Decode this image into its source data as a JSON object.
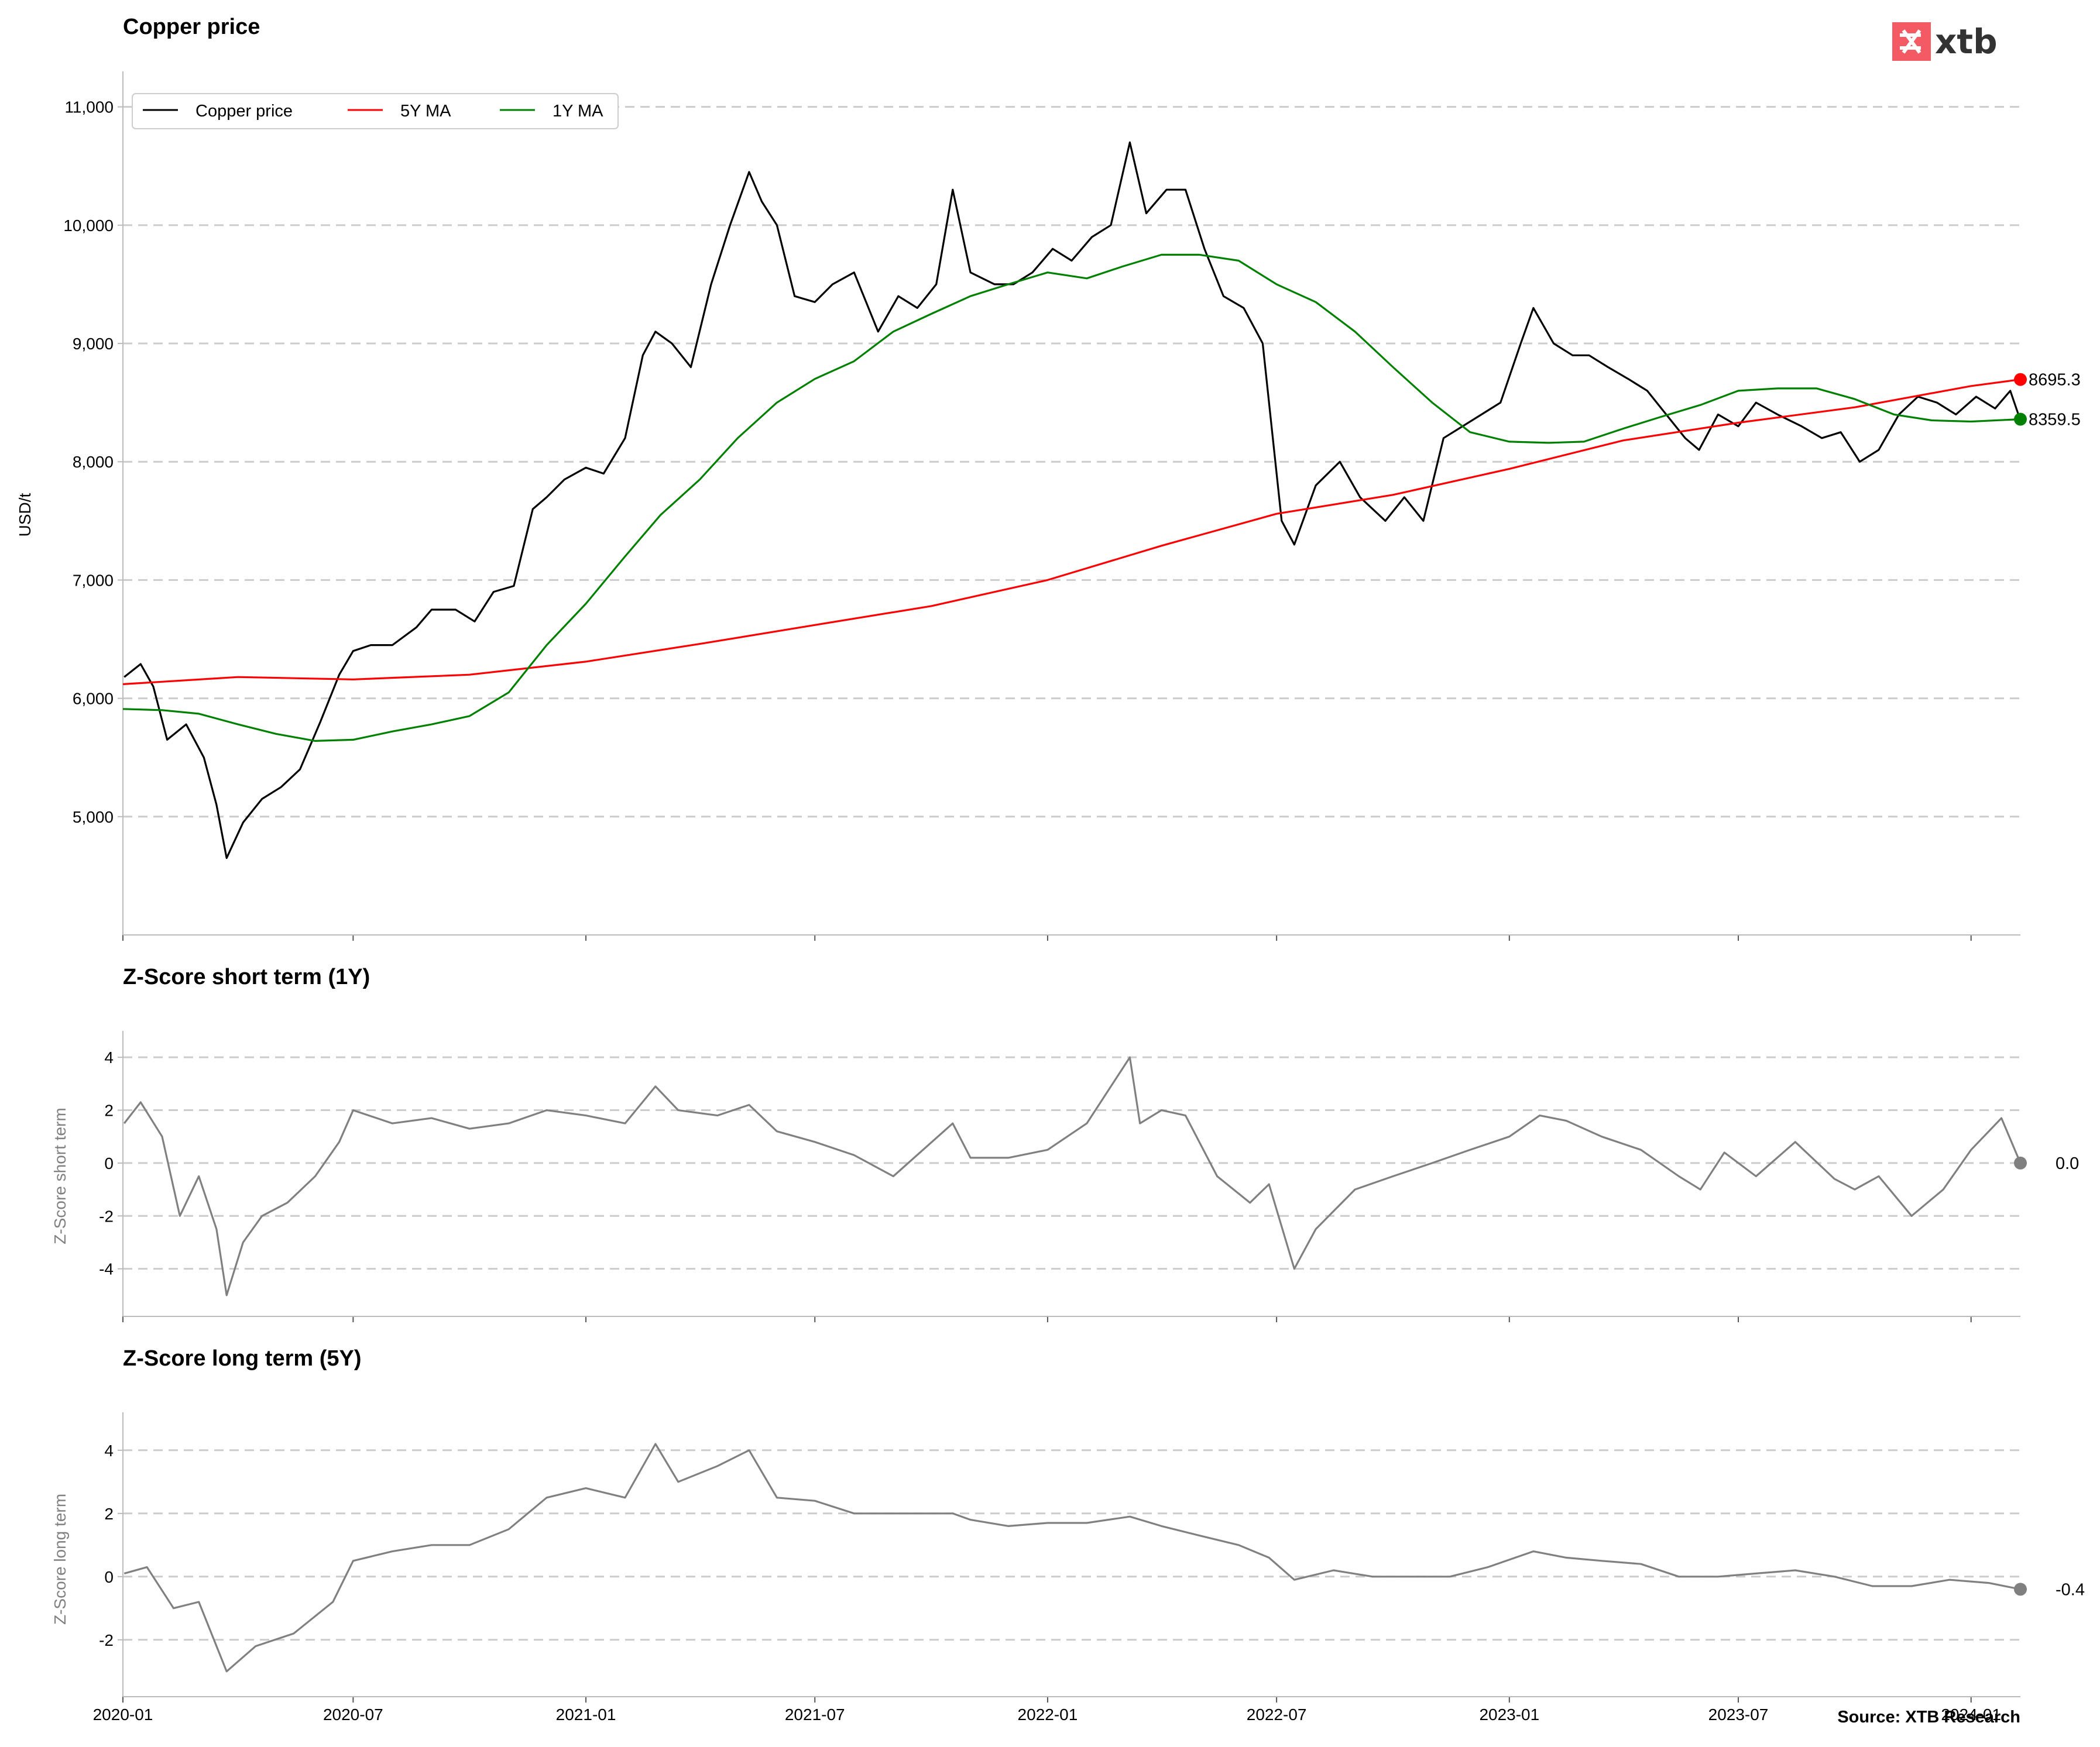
{
  "chart_data": [
    {
      "type": "line",
      "title": "Copper price",
      "ylabel": "USD/t",
      "xlabel": "",
      "ylim": [
        4000,
        11300
      ],
      "yticks": [
        5000,
        6000,
        7000,
        8000,
        9000,
        10000,
        11000
      ],
      "ytick_labels": [
        "5,000",
        "6,000",
        "7,000",
        "8,000",
        "9,000",
        "10,000",
        "11,000"
      ],
      "grid": "horizontal dashed",
      "legend_position": "top-left",
      "series": [
        {
          "name": "Copper price",
          "color": "#000000",
          "x": [
            "2020-01-02",
            "2020-01-15",
            "2020-01-25",
            "2020-02-05",
            "2020-02-20",
            "2020-03-05",
            "2020-03-15",
            "2020-03-23",
            "2020-04-05",
            "2020-04-20",
            "2020-05-05",
            "2020-05-20",
            "2020-06-05",
            "2020-06-20",
            "2020-07-01",
            "2020-07-15",
            "2020-08-01",
            "2020-08-20",
            "2020-09-01",
            "2020-09-20",
            "2020-10-05",
            "2020-10-20",
            "2020-11-05",
            "2020-11-20",
            "2020-12-01",
            "2020-12-15",
            "2021-01-01",
            "2021-01-15",
            "2021-02-01",
            "2021-02-15",
            "2021-02-25",
            "2021-03-10",
            "2021-03-25",
            "2021-04-10",
            "2021-04-25",
            "2021-05-10",
            "2021-05-20",
            "2021-06-01",
            "2021-06-15",
            "2021-07-01",
            "2021-07-15",
            "2021-08-01",
            "2021-08-20",
            "2021-09-05",
            "2021-09-20",
            "2021-10-05",
            "2021-10-18",
            "2021-11-01",
            "2021-11-20",
            "2021-12-05",
            "2021-12-20",
            "2022-01-05",
            "2022-01-20",
            "2022-02-05",
            "2022-02-20",
            "2022-03-07",
            "2022-03-20",
            "2022-04-05",
            "2022-04-20",
            "2022-05-05",
            "2022-05-20",
            "2022-06-05",
            "2022-06-20",
            "2022-07-05",
            "2022-07-15",
            "2022-08-01",
            "2022-08-20",
            "2022-09-05",
            "2022-09-25",
            "2022-10-10",
            "2022-10-25",
            "2022-11-10",
            "2022-11-25",
            "2022-12-10",
            "2022-12-25",
            "2023-01-10",
            "2023-01-20",
            "2023-02-05",
            "2023-02-20",
            "2023-03-05",
            "2023-03-20",
            "2023-04-05",
            "2023-04-20",
            "2023-05-05",
            "2023-05-20",
            "2023-05-31",
            "2023-06-15",
            "2023-07-01",
            "2023-07-15",
            "2023-08-01",
            "2023-08-20",
            "2023-09-05",
            "2023-09-20",
            "2023-10-05",
            "2023-10-20",
            "2023-11-05",
            "2023-11-20",
            "2023-12-05",
            "2023-12-20",
            "2024-01-05",
            "2024-01-20",
            "2024-02-01",
            "2024-02-09"
          ],
          "y": [
            6180,
            6290,
            6100,
            5650,
            5780,
            5500,
            5100,
            4650,
            4950,
            5150,
            5250,
            5400,
            5800,
            6200,
            6400,
            6450,
            6450,
            6600,
            6750,
            6750,
            6650,
            6900,
            6950,
            7600,
            7700,
            7850,
            7950,
            7900,
            8200,
            8900,
            9100,
            9000,
            8800,
            9500,
            10000,
            10450,
            10200,
            10000,
            9400,
            9350,
            9500,
            9600,
            9100,
            9400,
            9300,
            9500,
            10300,
            9600,
            9500,
            9500,
            9600,
            9800,
            9700,
            9900,
            10000,
            10700,
            10100,
            10300,
            10300,
            9800,
            9400,
            9300,
            9000,
            7500,
            7300,
            7800,
            8000,
            7700,
            7500,
            7700,
            7500,
            8200,
            8300,
            8400,
            8500,
            9000,
            9300,
            9000,
            8900,
            8900,
            8800,
            8700,
            8600,
            8400,
            8200,
            8100,
            8400,
            8300,
            8500,
            8400,
            8300,
            8200,
            8250,
            8000,
            8100,
            8400,
            8550,
            8500,
            8400,
            8550,
            8450,
            8600,
            8350
          ]
        },
        {
          "name": "5Y MA",
          "color": "#ff0000",
          "x": [
            "2020-01-01",
            "2020-04-01",
            "2020-07-01",
            "2020-10-01",
            "2021-01-01",
            "2021-04-01",
            "2021-07-01",
            "2021-10-01",
            "2022-01-01",
            "2022-04-01",
            "2022-07-01",
            "2022-10-01",
            "2023-01-01",
            "2023-04-01",
            "2023-07-01",
            "2023-10-01",
            "2024-01-01",
            "2024-02-09"
          ],
          "y": [
            6120,
            6180,
            6160,
            6200,
            6310,
            6460,
            6620,
            6780,
            7000,
            7290,
            7560,
            7720,
            7940,
            8180,
            8330,
            8460,
            8640,
            8695.3
          ]
        },
        {
          "name": "1Y MA",
          "color": "#008000",
          "x": [
            "2020-01-01",
            "2020-02-01",
            "2020-03-01",
            "2020-04-01",
            "2020-05-01",
            "2020-06-01",
            "2020-07-01",
            "2020-08-01",
            "2020-09-01",
            "2020-10-01",
            "2020-11-01",
            "2020-12-01",
            "2021-01-01",
            "2021-02-01",
            "2021-03-01",
            "2021-04-01",
            "2021-05-01",
            "2021-06-01",
            "2021-07-01",
            "2021-08-01",
            "2021-09-01",
            "2021-10-01",
            "2021-11-01",
            "2021-12-01",
            "2022-01-01",
            "2022-02-01",
            "2022-03-01",
            "2022-04-01",
            "2022-05-01",
            "2022-06-01",
            "2022-07-01",
            "2022-08-01",
            "2022-09-01",
            "2022-10-01",
            "2022-11-01",
            "2022-12-01",
            "2023-01-01",
            "2023-02-01",
            "2023-03-01",
            "2023-04-01",
            "2023-05-01",
            "2023-06-01",
            "2023-07-01",
            "2023-08-01",
            "2023-09-01",
            "2023-10-01",
            "2023-11-01",
            "2023-12-01",
            "2024-01-01",
            "2024-02-09"
          ],
          "y": [
            5910,
            5900,
            5870,
            5780,
            5700,
            5640,
            5650,
            5720,
            5780,
            5850,
            6050,
            6450,
            6800,
            7200,
            7550,
            7850,
            8200,
            8500,
            8700,
            8850,
            9100,
            9250,
            9400,
            9500,
            9600,
            9550,
            9650,
            9750,
            9750,
            9700,
            9500,
            9350,
            9100,
            8800,
            8500,
            8250,
            8170,
            8160,
            8170,
            8280,
            8380,
            8480,
            8600,
            8620,
            8620,
            8530,
            8400,
            8350,
            8340,
            8359.5
          ]
        }
      ],
      "end_labels": [
        "8695.3",
        "8359.5"
      ]
    },
    {
      "type": "line",
      "title": "Z-Score short term (1Y)",
      "ylabel": "Z-Score short term",
      "ylim": [
        -5.8,
        5
      ],
      "yticks": [
        -4,
        -2,
        0,
        2,
        4
      ],
      "ytick_labels": [
        "-4",
        "-2",
        "0",
        "2",
        "4"
      ],
      "grid": "horizontal dashed",
      "series": [
        {
          "color": "#808080",
          "x": [
            "2020-01-02",
            "2020-01-15",
            "2020-02-01",
            "2020-02-15",
            "2020-03-01",
            "2020-03-15",
            "2020-03-23",
            "2020-04-05",
            "2020-04-20",
            "2020-05-10",
            "2020-06-01",
            "2020-06-20",
            "2020-07-01",
            "2020-08-01",
            "2020-09-01",
            "2020-10-01",
            "2020-11-01",
            "2020-12-01",
            "2021-01-01",
            "2021-02-01",
            "2021-02-25",
            "2021-03-15",
            "2021-04-15",
            "2021-05-10",
            "2021-06-01",
            "2021-07-01",
            "2021-08-01",
            "2021-09-01",
            "2021-10-18",
            "2021-11-01",
            "2021-12-01",
            "2022-01-01",
            "2022-02-01",
            "2022-03-07",
            "2022-03-15",
            "2022-04-01",
            "2022-04-20",
            "2022-05-15",
            "2022-06-10",
            "2022-06-25",
            "2022-07-15",
            "2022-08-01",
            "2022-09-01",
            "2022-10-01",
            "2022-11-01",
            "2022-12-01",
            "2023-01-01",
            "2023-01-25",
            "2023-02-15",
            "2023-03-15",
            "2023-04-15",
            "2023-05-15",
            "2023-06-01",
            "2023-06-20",
            "2023-07-15",
            "2023-08-15",
            "2023-09-15",
            "2023-10-01",
            "2023-10-20",
            "2023-11-15",
            "2023-12-10",
            "2024-01-01",
            "2024-01-25",
            "2024-02-09"
          ],
          "y": [
            1.5,
            2.3,
            1.0,
            -2.0,
            -0.5,
            -2.5,
            -5.0,
            -3.0,
            -2.0,
            -1.5,
            -0.5,
            0.8,
            2.0,
            1.5,
            1.7,
            1.3,
            1.5,
            2.0,
            1.8,
            1.5,
            2.9,
            2.0,
            1.8,
            2.2,
            1.2,
            0.8,
            0.3,
            -0.5,
            1.5,
            0.2,
            0.2,
            0.5,
            1.5,
            4.0,
            1.5,
            2.0,
            1.8,
            -0.5,
            -1.5,
            -0.8,
            -4.0,
            -2.5,
            -1.0,
            -0.5,
            0,
            0.5,
            1.0,
            1.8,
            1.6,
            1.0,
            0.5,
            -0.5,
            -1.0,
            0.4,
            -0.5,
            0.8,
            -0.6,
            -1.0,
            -0.5,
            -2.0,
            -1.0,
            0.5,
            1.7,
            0.0
          ]
        }
      ],
      "end_label": "0.0"
    },
    {
      "type": "line",
      "title": "Z-Score long term (5Y)",
      "ylabel": "Z-Score long term",
      "ylim": [
        -3.8,
        5.2
      ],
      "yticks": [
        -2,
        0,
        2,
        4
      ],
      "ytick_labels": [
        "-2",
        "0",
        "2",
        "4"
      ],
      "xticks": [
        "2020-01",
        "2020-07",
        "2021-01",
        "2021-07",
        "2022-01",
        "2022-07",
        "2023-01",
        "2023-07",
        "2024-01"
      ],
      "grid": "horizontal dashed",
      "series": [
        {
          "color": "#808080",
          "x": [
            "2020-01-02",
            "2020-01-20",
            "2020-02-10",
            "2020-03-01",
            "2020-03-23",
            "2020-04-15",
            "2020-05-15",
            "2020-06-15",
            "2020-07-01",
            "2020-08-01",
            "2020-09-01",
            "2020-10-01",
            "2020-11-01",
            "2020-12-01",
            "2021-01-01",
            "2021-02-01",
            "2021-02-25",
            "2021-03-15",
            "2021-04-15",
            "2021-05-10",
            "2021-06-01",
            "2021-07-01",
            "2021-08-01",
            "2021-09-01",
            "2021-10-18",
            "2021-11-01",
            "2021-12-01",
            "2022-01-01",
            "2022-02-01",
            "2022-03-07",
            "2022-04-01",
            "2022-05-01",
            "2022-06-01",
            "2022-06-25",
            "2022-07-15",
            "2022-08-15",
            "2022-09-15",
            "2022-10-15",
            "2022-11-15",
            "2022-12-15",
            "2023-01-20",
            "2023-02-15",
            "2023-03-15",
            "2023-04-15",
            "2023-05-15",
            "2023-06-15",
            "2023-07-15",
            "2023-08-15",
            "2023-09-15",
            "2023-10-15",
            "2023-11-15",
            "2023-12-15",
            "2024-01-15",
            "2024-02-09"
          ],
          "y": [
            0.1,
            0.3,
            -1.0,
            -0.8,
            -3.0,
            -2.2,
            -1.8,
            -0.8,
            0.5,
            0.8,
            1.0,
            1.0,
            1.5,
            2.5,
            2.8,
            2.5,
            4.2,
            3.0,
            3.5,
            4.0,
            2.5,
            2.4,
            2.0,
            2.0,
            2.0,
            1.8,
            1.6,
            1.7,
            1.7,
            1.9,
            1.6,
            1.3,
            1.0,
            0.6,
            -0.1,
            0.2,
            0,
            0,
            0,
            0.3,
            0.8,
            0.6,
            0.5,
            0.4,
            0,
            0,
            0.1,
            0.2,
            0,
            -0.3,
            -0.3,
            -0.1,
            -0.2,
            -0.4
          ]
        }
      ],
      "end_label": "-0.4"
    }
  ],
  "x_axis": {
    "start": "2020-01-01",
    "end": "2024-02-09",
    "tick_labels": [
      "2020-01",
      "2020-07",
      "2021-01",
      "2021-07",
      "2022-01",
      "2022-07",
      "2023-01",
      "2023-07",
      "2024-01"
    ]
  },
  "branding": {
    "logo_text": "xtb",
    "logo_color": "#f35a64"
  },
  "source": "Source: XTB Research",
  "colors": {
    "grid": "#cccccc",
    "axis": "#bbbbbb",
    "zscore": "#808080",
    "price": "#000000",
    "ma5": "#ff0000",
    "ma1": "#008000"
  }
}
